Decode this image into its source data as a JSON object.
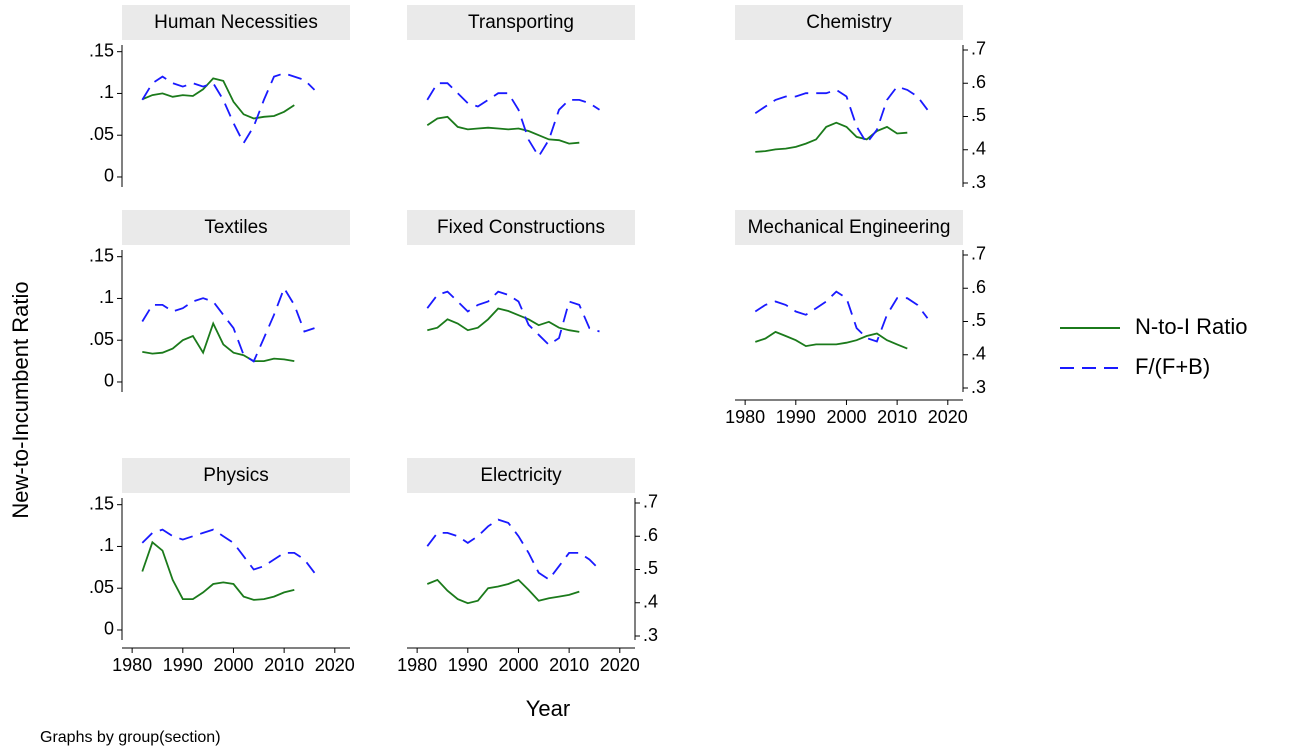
{
  "chart_data": {
    "type": "line",
    "ylabel": "New-to-Incumbent Ratio",
    "xlabel": "Year",
    "note": "Graphs by group(section)",
    "xlim": [
      1978,
      2023
    ],
    "xticks": [
      1980,
      1990,
      2000,
      2010,
      2020
    ],
    "ylim": [
      -0.012,
      0.158
    ],
    "yticks": [
      0,
      {
        "value": 0.05,
        "label": ".05"
      },
      {
        "value": 0.1,
        "label": ".1"
      },
      {
        "value": 0.15,
        "label": ".15"
      }
    ],
    "y2lim": [
      0.288,
      0.715
    ],
    "y2ticks": [
      {
        "value": 0.3,
        "label": ".3"
      },
      {
        "value": 0.4,
        "label": ".4"
      },
      {
        "value": 0.5,
        "label": ".5"
      },
      {
        "value": 0.6,
        "label": ".6"
      },
      {
        "value": 0.7,
        "label": ".7"
      }
    ],
    "x": [
      1982,
      1984,
      1986,
      1988,
      1990,
      1992,
      1994,
      1996,
      1998,
      2000,
      2002,
      2004,
      2006,
      2008,
      2010,
      2012,
      2014,
      2016
    ],
    "series": [
      {
        "name": "N-to-I Ratio",
        "color": "#1b7a1b",
        "dash": "none",
        "axis": "y"
      },
      {
        "name": "F/(F+B)",
        "color": "#1a1aff",
        "dash": "14 8",
        "axis": "y2"
      }
    ],
    "panels": [
      {
        "title": "Human Necessities",
        "values": [
          [
            0.093,
            0.098,
            0.1,
            0.096,
            0.098,
            0.097,
            0.105,
            0.118,
            0.115,
            0.09,
            0.075,
            0.07,
            0.072,
            0.073,
            0.078,
            0.086,
            null,
            null
          ],
          [
            0.55,
            0.6,
            0.62,
            0.6,
            0.59,
            0.6,
            0.59,
            0.6,
            0.55,
            0.48,
            0.42,
            0.47,
            0.55,
            0.62,
            0.63,
            0.62,
            0.61,
            0.58
          ]
        ]
      },
      {
        "title": "Transporting",
        "values": [
          [
            0.062,
            0.07,
            0.072,
            0.06,
            0.057,
            0.058,
            0.059,
            0.058,
            0.057,
            0.058,
            0.055,
            0.05,
            0.045,
            0.044,
            0.04,
            0.041,
            null,
            null
          ],
          [
            0.55,
            0.6,
            0.6,
            0.57,
            0.54,
            0.53,
            0.55,
            0.57,
            0.57,
            0.52,
            0.43,
            0.38,
            0.43,
            0.52,
            0.55,
            0.55,
            0.54,
            0.52
          ]
        ]
      },
      {
        "title": "Chemistry",
        "values": [
          [
            0.03,
            0.031,
            0.033,
            0.034,
            0.036,
            0.04,
            0.045,
            0.06,
            0.065,
            0.06,
            0.048,
            0.045,
            0.055,
            0.06,
            0.052,
            0.053,
            null,
            null
          ],
          [
            0.51,
            0.53,
            0.55,
            0.56,
            0.56,
            0.57,
            0.57,
            0.57,
            0.58,
            0.56,
            0.47,
            0.42,
            0.46,
            0.55,
            0.59,
            0.58,
            0.56,
            0.52
          ]
        ]
      },
      {
        "title": "Textiles",
        "values": [
          [
            0.036,
            0.034,
            0.035,
            0.04,
            0.05,
            0.055,
            0.035,
            0.07,
            0.045,
            0.035,
            0.032,
            0.025,
            0.025,
            0.028,
            0.027,
            0.025,
            null,
            null
          ],
          [
            0.5,
            0.55,
            0.55,
            0.53,
            0.54,
            0.56,
            0.57,
            0.56,
            0.52,
            0.48,
            0.4,
            0.38,
            0.45,
            0.52,
            0.6,
            0.55,
            0.47,
            0.48
          ]
        ]
      },
      {
        "title": "Fixed Constructions",
        "values": [
          [
            0.062,
            0.065,
            0.075,
            0.07,
            0.062,
            0.065,
            0.075,
            0.088,
            0.085,
            0.08,
            0.075,
            0.068,
            0.072,
            0.065,
            0.062,
            0.06,
            null,
            null
          ],
          [
            0.54,
            0.58,
            0.59,
            0.56,
            0.53,
            0.55,
            0.56,
            0.59,
            0.58,
            0.56,
            0.49,
            0.46,
            0.43,
            0.45,
            0.56,
            0.55,
            0.48,
            0.47
          ]
        ]
      },
      {
        "title": "Mechanical Engineering",
        "values": [
          [
            0.048,
            0.052,
            0.06,
            0.055,
            0.05,
            0.043,
            0.045,
            0.045,
            0.045,
            0.047,
            0.05,
            0.055,
            0.058,
            0.05,
            0.045,
            0.04,
            null,
            null
          ],
          [
            0.53,
            0.55,
            0.56,
            0.55,
            0.53,
            0.52,
            0.54,
            0.56,
            0.59,
            0.57,
            0.48,
            0.45,
            0.44,
            0.52,
            0.57,
            0.57,
            0.55,
            0.51
          ]
        ]
      },
      {
        "title": "Physics",
        "values": [
          [
            0.07,
            0.105,
            0.095,
            0.06,
            0.037,
            0.037,
            0.045,
            0.055,
            0.057,
            0.055,
            0.04,
            0.036,
            0.037,
            0.04,
            0.045,
            0.048,
            null,
            null
          ],
          [
            0.58,
            0.61,
            0.62,
            0.6,
            0.59,
            0.6,
            0.61,
            0.62,
            0.6,
            0.58,
            0.54,
            0.5,
            0.51,
            0.53,
            0.55,
            0.55,
            0.53,
            0.49
          ]
        ]
      },
      {
        "title": "Electricity",
        "values": [
          [
            0.055,
            0.06,
            0.047,
            0.037,
            0.032,
            0.035,
            0.05,
            0.052,
            0.055,
            0.06,
            0.048,
            0.035,
            0.038,
            0.04,
            0.042,
            0.046,
            null,
            null
          ],
          [
            0.57,
            0.61,
            0.61,
            0.6,
            0.58,
            0.6,
            0.63,
            0.65,
            0.64,
            0.6,
            0.55,
            0.49,
            0.47,
            0.51,
            0.55,
            0.55,
            0.53,
            0.5
          ]
        ]
      }
    ]
  }
}
